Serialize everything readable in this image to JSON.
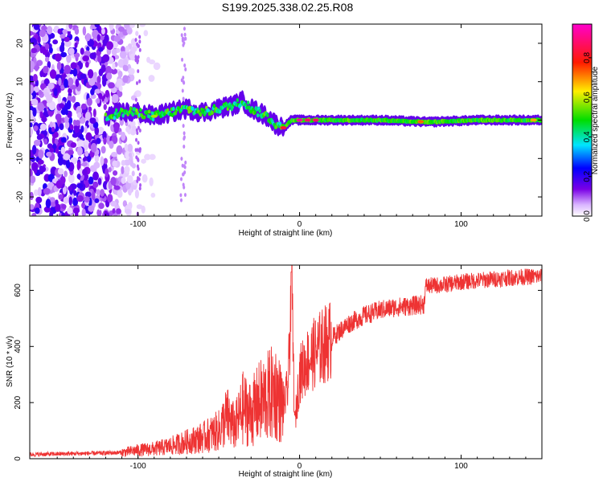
{
  "title": "S199.2025.338.02.25.R08",
  "chart_data": [
    {
      "type": "heatmap",
      "title": "S199.2025.338.02.25.R08",
      "xlabel": "Height of straight line (km)",
      "ylabel": "Frequency (Hz)",
      "xlim": [
        -167,
        150
      ],
      "ylim": [
        -25,
        25
      ],
      "xticks": [
        -100,
        0,
        100
      ],
      "yticks": [
        -20,
        -10,
        0,
        10,
        20
      ],
      "colorbar": {
        "label": "Normalized spectral amplitude",
        "range": [
          0,
          0.97
        ],
        "ticks": [
          0.0,
          0.2,
          0.4,
          0.6,
          0.8
        ],
        "colormap": "rainbow (white-purple-blue-cyan-green-yellow-red-magenta)"
      },
      "ridge": {
        "description": "dominant frequency ridge",
        "x": [
          -120,
          -110,
          -100,
          -90,
          -80,
          -70,
          -60,
          -50,
          -40,
          -35,
          -30,
          -25,
          -20,
          -15,
          -10,
          -5,
          0,
          20,
          50,
          80,
          110,
          150
        ],
        "freq": [
          1,
          2,
          2,
          1,
          2,
          3,
          2,
          3,
          4,
          5,
          3,
          2,
          1,
          -1,
          -2,
          0,
          0,
          0,
          0,
          -0.5,
          0,
          0
        ],
        "peak_amplitude_x": [
          -90,
          -10,
          0,
          5,
          10,
          75,
          145
        ],
        "peak_amplitude": [
          0.6,
          0.85,
          0.95,
          0.9,
          0.9,
          0.75,
          0.7
        ]
      },
      "noise_region_x": [
        -167,
        -100
      ]
    },
    {
      "type": "line",
      "xlabel": "Height of straight line (km)",
      "ylabel": "SNR (10 * v/v)",
      "xlim": [
        -167,
        150
      ],
      "ylim": [
        0,
        690
      ],
      "xticks": [
        -100,
        0,
        100
      ],
      "yticks": [
        0,
        200,
        400,
        600
      ],
      "color": "#ee3333",
      "series": [
        {
          "x": [
            -167,
            -140,
            -120,
            -110,
            -100,
            -90,
            -80,
            -70,
            -60,
            -50,
            -45,
            -40,
            -35,
            -30,
            -25,
            -20,
            -15,
            -10,
            -7,
            -5,
            -3,
            0,
            5,
            10,
            20,
            30,
            40,
            50,
            60,
            70,
            77,
            78,
            90,
            100,
            110,
            120,
            130,
            140,
            150
          ],
          "y": [
            15,
            18,
            20,
            22,
            30,
            35,
            45,
            60,
            75,
            100,
            150,
            110,
            180,
            160,
            200,
            220,
            240,
            180,
            260,
            660,
            120,
            300,
            350,
            380,
            430,
            480,
            510,
            530,
            540,
            545,
            550,
            615,
            620,
            630,
            635,
            640,
            645,
            648,
            650
          ]
        }
      ],
      "grid": false
    }
  ]
}
